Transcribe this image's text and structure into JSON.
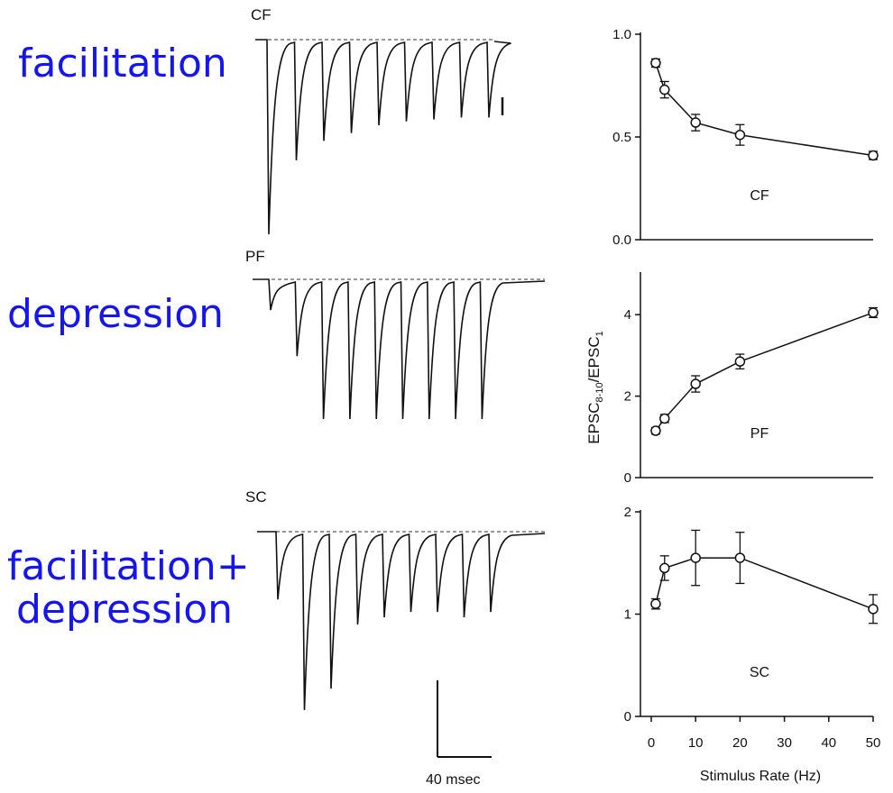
{
  "annotations": {
    "cf": "facilitation",
    "pf": "depression",
    "sc_line1": "facilitation+",
    "sc_line2": "depression"
  },
  "colors": {
    "annotation": "#1515f0",
    "ink": "#111111"
  },
  "traces": {
    "cf_label": "CF",
    "pf_label": "PF",
    "sc_label": "SC",
    "scale_bar_label": "40 msec",
    "cf_peak_depths": [
      1.0,
      0.62,
      0.52,
      0.48,
      0.44,
      0.42,
      0.41,
      0.4,
      0.4
    ],
    "pf_peak_depths": [
      0.22,
      0.55,
      1.0,
      1.0,
      1.0,
      1.0,
      1.0,
      1.0,
      1.0
    ],
    "sc_peak_depths": [
      0.38,
      1.0,
      0.88,
      0.52,
      0.48,
      0.45,
      0.45,
      0.48,
      0.45
    ]
  },
  "chart_data": [
    {
      "type": "line",
      "panel_label": "CF",
      "x": [
        1,
        3,
        10,
        20,
        50
      ],
      "y": [
        0.86,
        0.73,
        0.57,
        0.51,
        0.41
      ],
      "yerr": [
        0.02,
        0.04,
        0.04,
        0.05,
        0.02
      ],
      "xlim": [
        0,
        50
      ],
      "ylim": [
        0,
        1.0
      ],
      "yticks": [
        "0.0",
        "0.5",
        "1.0"
      ],
      "ytick_values": [
        0,
        0.5,
        1.0
      ]
    },
    {
      "type": "line",
      "panel_label": "PF",
      "x": [
        1,
        3,
        10,
        20,
        50
      ],
      "y": [
        1.15,
        1.45,
        2.3,
        2.85,
        4.05
      ],
      "yerr": [
        0.08,
        0.1,
        0.2,
        0.18,
        0.12
      ],
      "xlim": [
        0,
        50
      ],
      "ylim": [
        0,
        5
      ],
      "yticks": [
        "0",
        "2",
        "4"
      ],
      "ytick_values": [
        0,
        2,
        4
      ],
      "ylabel": "EPSC8-10/EPSC1"
    },
    {
      "type": "line",
      "panel_label": "SC",
      "x": [
        1,
        3,
        10,
        20,
        50
      ],
      "y": [
        1.1,
        1.45,
        1.55,
        1.55,
        1.05
      ],
      "yerr": [
        0.05,
        0.12,
        0.27,
        0.25,
        0.14
      ],
      "xlim": [
        0,
        50
      ],
      "ylim": [
        0,
        2
      ],
      "yticks": [
        "0",
        "1",
        "2"
      ],
      "ytick_values": [
        0,
        1,
        2
      ],
      "xticks": [
        "0",
        "10",
        "20",
        "30",
        "40",
        "50"
      ],
      "xtick_values": [
        0,
        10,
        20,
        30,
        40,
        50
      ],
      "xlabel": "Stimulus Rate (Hz)"
    }
  ]
}
